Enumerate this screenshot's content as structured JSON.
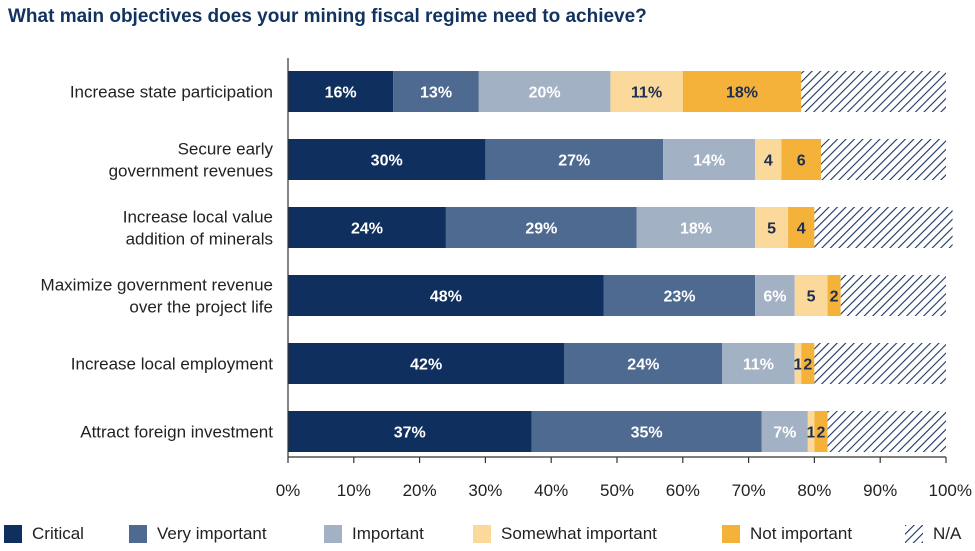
{
  "title": "What main objectives does your mining fiscal regime need to achieve?",
  "chart_data": {
    "type": "bar",
    "orientation": "horizontal",
    "stacked": true,
    "xlim": [
      0,
      100
    ],
    "x_ticks": [
      "0%",
      "10%",
      "20%",
      "30%",
      "40%",
      "50%",
      "60%",
      "70%",
      "80%",
      "90%",
      "100%"
    ],
    "grid": false,
    "legend_position": "bottom",
    "categories": [
      [
        "Increase state participation"
      ],
      [
        "Secure early",
        "government revenues"
      ],
      [
        "Increase local value",
        "addition of minerals"
      ],
      [
        "Maximize government revenue",
        "over the project life"
      ],
      [
        "Increase local employment"
      ],
      [
        "Attract foreign investment"
      ]
    ],
    "series": [
      {
        "name": "Critical",
        "color": "#0f305f",
        "values": [
          16,
          30,
          24,
          48,
          42,
          37
        ],
        "labels": [
          "16%",
          "30%",
          "24%",
          "48%",
          "42%",
          "37%"
        ],
        "label_color": "#ffffff"
      },
      {
        "name": "Very important",
        "color": "#4e6a91",
        "values": [
          13,
          27,
          29,
          23,
          24,
          35
        ],
        "labels": [
          "13%",
          "27%",
          "29%",
          "23%",
          "24%",
          "35%"
        ],
        "label_color": "#ffffff"
      },
      {
        "name": "Important",
        "color": "#a3b1c5",
        "values": [
          20,
          14,
          18,
          6,
          11,
          7
        ],
        "labels": [
          "20%",
          "14%",
          "18%",
          "6%",
          "11%",
          "7%"
        ],
        "label_color": "#ffffff"
      },
      {
        "name": "Somewhat important",
        "color": "#fbd99a",
        "values": [
          11,
          4,
          5,
          5,
          1,
          1
        ],
        "labels": [
          "11%",
          "4",
          "5",
          "5",
          "1",
          "1"
        ],
        "label_color": "#1b2f55"
      },
      {
        "name": "Not important",
        "color": "#f5b23b",
        "values": [
          18,
          6,
          4,
          2,
          2,
          2
        ],
        "labels": [
          "18%",
          "6",
          "4",
          "2",
          "2",
          "2"
        ],
        "label_color": "#1b2f55"
      },
      {
        "name": "N/A",
        "color": "#1b3560",
        "pattern": "diagonal-hatch",
        "values": [
          22,
          19,
          21,
          16,
          20,
          18
        ],
        "labels": [
          "",
          "",
          "",
          "",
          "",
          ""
        ]
      }
    ]
  }
}
